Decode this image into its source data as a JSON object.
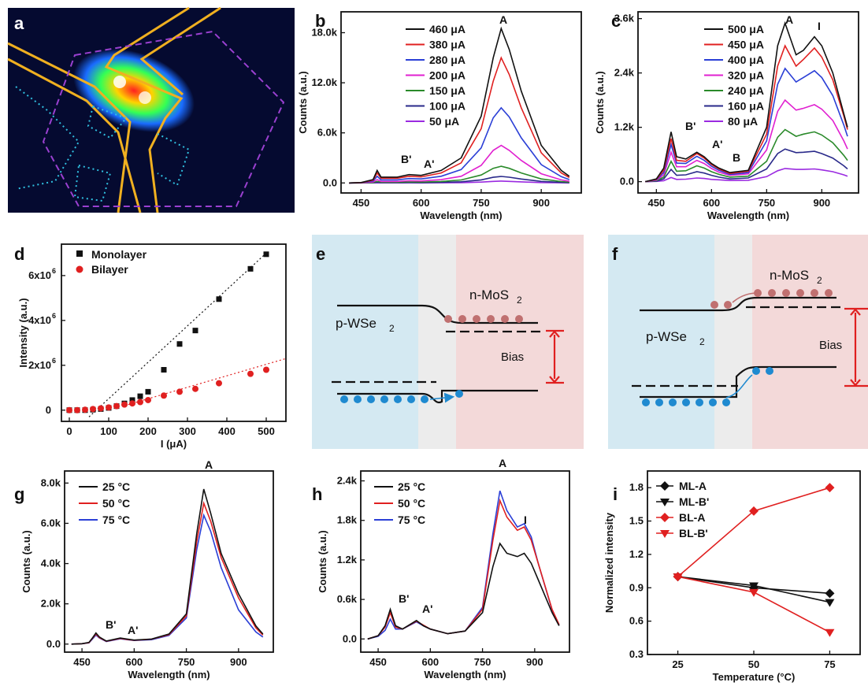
{
  "panel_labels": [
    "a",
    "b",
    "c",
    "d",
    "e",
    "f",
    "g",
    "h",
    "i"
  ],
  "colors": {
    "black": "#111111",
    "red": "#e02020",
    "blue": "#2b3fd6",
    "magenta": "#e020d0",
    "green": "#2a8a2a",
    "navy": "#2a2a8a",
    "violet": "#9a2ae0"
  },
  "panel_a": {
    "type": "image",
    "description": "EL map"
  },
  "panel_b": {
    "x_axis_title": "Wavelength (nm)",
    "y_axis_title": "Counts (a.u.)",
    "x_ticks": [
      "450",
      "600",
      "750",
      "900"
    ],
    "y_ticks": [
      "0.0",
      "6.0k",
      "12.0k",
      "18.0k"
    ],
    "peak_labels": [
      "A",
      "B'",
      "A'"
    ],
    "legend": [
      "460 μA",
      "380 μA",
      "280 μA",
      "200 μA",
      "150 μA",
      "100 μA",
      "50 μA"
    ]
  },
  "panel_c": {
    "x_axis_title": "Wavelength (nm)",
    "y_axis_title": "Counts (a.u.)",
    "x_ticks": [
      "450",
      "600",
      "750",
      "900"
    ],
    "y_ticks": [
      "0.0",
      "1.2k",
      "2.4k",
      "3.6k"
    ],
    "peak_labels": [
      "A",
      "I",
      "B'",
      "A'",
      "B"
    ],
    "legend": [
      "500 μA",
      "450 μA",
      "400 μA",
      "320 μA",
      "240 μA",
      "160 μA",
      "80 μA"
    ]
  },
  "panel_d": {
    "x_axis_title": "I (μA)",
    "y_axis_title": "Intensity (a.u.)",
    "x_ticks": [
      "0",
      "100",
      "200",
      "300",
      "400",
      "500"
    ],
    "y_ticks": [
      "0",
      "2x10",
      "4x10",
      "6x10"
    ],
    "y_exp": "6",
    "legend": [
      "Monolayer",
      "Bilayer"
    ]
  },
  "panel_e": {
    "left_label": "p-WSe",
    "right_label": "n-MoS",
    "sub": "2",
    "bias": "Bias"
  },
  "panel_f": {
    "left_label": "p-WSe",
    "right_label": "n-MoS",
    "sub": "2",
    "bias": "Bias"
  },
  "panel_g": {
    "x_axis_title": "Wavelength (nm)",
    "y_axis_title": "Counts (a.u.)",
    "x_ticks": [
      "450",
      "600",
      "750",
      "900"
    ],
    "y_ticks": [
      "0.0",
      "2.0k",
      "4.0k",
      "6.0k",
      "8.0k"
    ],
    "peak_labels": [
      "A",
      "B'",
      "A'"
    ],
    "legend": [
      "25 °C",
      "50 °C",
      "75 °C"
    ]
  },
  "panel_h": {
    "x_axis_title": "Wavelength (nm)",
    "y_axis_title": "Counts (a.u.)",
    "x_ticks": [
      "450",
      "600",
      "750",
      "900"
    ],
    "y_ticks": [
      "0.0",
      "0.6k",
      "1.2k",
      "1.8k",
      "2.4k"
    ],
    "peak_labels": [
      "A",
      "I",
      "B'",
      "A'"
    ],
    "legend": [
      "25 °C",
      "50 °C",
      "75 °C"
    ]
  },
  "panel_i": {
    "x_axis_title": "Temperature (°C)",
    "y_axis_title": "Normalized intensity",
    "x_ticks": [
      "25",
      "50",
      "75"
    ],
    "y_ticks": [
      "0.3",
      "0.6",
      "0.9",
      "1.2",
      "1.5",
      "1.8"
    ],
    "legend": [
      "ML-A",
      "ML-B'",
      "BL-A",
      "BL-B'"
    ]
  },
  "chart_data": [
    {
      "panel": "b",
      "type": "line",
      "x": [
        420,
        450,
        480,
        490,
        500,
        540,
        570,
        600,
        650,
        700,
        750,
        780,
        800,
        820,
        850,
        900,
        950,
        970
      ],
      "series": [
        {
          "name": "460 μA",
          "values": [
            0,
            50,
            400,
            1500,
            700,
            700,
            1000,
            900,
            1500,
            3000,
            8000,
            15000,
            18500,
            16000,
            11000,
            4500,
            1500,
            800
          ]
        },
        {
          "name": "380 μA",
          "values": [
            0,
            40,
            330,
            1200,
            560,
            560,
            800,
            720,
            1200,
            2400,
            6500,
            12200,
            15000,
            13000,
            9000,
            3600,
            1200,
            650
          ]
        },
        {
          "name": "280 μA",
          "values": [
            0,
            30,
            220,
            800,
            370,
            370,
            530,
            480,
            800,
            1600,
            4200,
            7800,
            9000,
            7900,
            5400,
            2200,
            750,
            400
          ]
        },
        {
          "name": "200 μA",
          "values": [
            0,
            20,
            110,
            400,
            180,
            180,
            260,
            230,
            390,
            800,
            2100,
            3900,
            4500,
            3900,
            2700,
            1100,
            370,
            200
          ]
        },
        {
          "name": "150 μA",
          "values": [
            0,
            10,
            50,
            180,
            80,
            80,
            120,
            100,
            180,
            360,
            950,
            1750,
            2000,
            1750,
            1200,
            480,
            170,
            90
          ]
        },
        {
          "name": "100 μA",
          "values": [
            0,
            5,
            20,
            70,
            30,
            30,
            45,
            40,
            70,
            140,
            370,
            680,
            780,
            690,
            470,
            190,
            65,
            35
          ]
        },
        {
          "name": "50 μA",
          "values": [
            0,
            2,
            5,
            20,
            10,
            10,
            15,
            12,
            20,
            40,
            100,
            190,
            220,
            190,
            130,
            50,
            20,
            10
          ]
        }
      ],
      "xlim": [
        400,
        1000
      ],
      "ylim": [
        -1200,
        20500
      ]
    },
    {
      "panel": "c",
      "type": "line",
      "x": [
        420,
        450,
        470,
        490,
        505,
        530,
        560,
        580,
        600,
        620,
        650,
        700,
        750,
        780,
        800,
        830,
        850,
        880,
        900,
        930,
        960,
        970
      ],
      "series": [
        {
          "name": "500 μA",
          "values": [
            0,
            60,
            300,
            1100,
            550,
            500,
            650,
            550,
            400,
            300,
            200,
            250,
            1200,
            3000,
            3500,
            2800,
            2900,
            3200,
            3000,
            2400,
            1500,
            1200
          ]
        },
        {
          "name": "450 μA",
          "values": [
            0,
            50,
            250,
            950,
            470,
            450,
            620,
            520,
            380,
            280,
            180,
            230,
            1050,
            2550,
            3000,
            2550,
            2700,
            2950,
            2750,
            2250,
            1450,
            1150
          ]
        },
        {
          "name": "400 μA",
          "values": [
            0,
            40,
            200,
            820,
            410,
            400,
            560,
            470,
            340,
            250,
            160,
            200,
            900,
            2150,
            2500,
            2200,
            2300,
            2450,
            2300,
            1900,
            1250,
            1000
          ]
        },
        {
          "name": "320 μA",
          "values": [
            0,
            30,
            150,
            650,
            330,
            330,
            470,
            400,
            290,
            210,
            140,
            170,
            700,
            1550,
            1800,
            1580,
            1620,
            1700,
            1600,
            1350,
            900,
            720
          ]
        },
        {
          "name": "240 μA",
          "values": [
            0,
            20,
            100,
            450,
            230,
            240,
            350,
            300,
            220,
            160,
            100,
            120,
            450,
            980,
            1150,
            1000,
            1050,
            1100,
            1030,
            860,
            580,
            470
          ]
        },
        {
          "name": "160 μA",
          "values": [
            0,
            10,
            60,
            270,
            140,
            150,
            220,
            190,
            140,
            100,
            60,
            80,
            280,
            620,
            720,
            640,
            650,
            670,
            620,
            520,
            350,
            280
          ]
        },
        {
          "name": "80 μA",
          "values": [
            0,
            5,
            20,
            90,
            50,
            55,
            80,
            70,
            50,
            40,
            25,
            30,
            110,
            240,
            290,
            270,
            270,
            280,
            260,
            220,
            150,
            120
          ]
        }
      ],
      "xlim": [
        400,
        1000
      ],
      "ylim": [
        -250,
        3750
      ]
    },
    {
      "panel": "d",
      "type": "scatter",
      "series": [
        {
          "name": "Monolayer",
          "x": [
            0,
            20,
            40,
            60,
            80,
            100,
            120,
            140,
            160,
            180,
            200,
            240,
            280,
            320,
            380,
            460,
            500
          ],
          "y": [
            0,
            0,
            0,
            0.02,
            0.05,
            0.1,
            0.18,
            0.3,
            0.45,
            0.62,
            0.82,
            1.8,
            2.95,
            3.55,
            4.95,
            6.3,
            6.95
          ]
        },
        {
          "name": "Bilayer",
          "x": [
            0,
            20,
            40,
            60,
            80,
            100,
            120,
            140,
            160,
            180,
            200,
            240,
            280,
            320,
            380,
            460,
            500
          ],
          "y": [
            0,
            0,
            0.02,
            0.05,
            0.08,
            0.12,
            0.18,
            0.25,
            0.3,
            0.36,
            0.45,
            0.65,
            0.82,
            0.95,
            1.2,
            1.62,
            1.8
          ]
        }
      ],
      "xlim": [
        -20,
        550
      ],
      "ylim": [
        -0.5,
        7.4
      ]
    },
    {
      "panel": "g",
      "type": "line",
      "x": [
        420,
        450,
        470,
        480,
        490,
        500,
        520,
        560,
        580,
        600,
        650,
        700,
        750,
        780,
        800,
        820,
        850,
        900,
        950,
        970
      ],
      "series": [
        {
          "name": "25 °C",
          "values": [
            0,
            20,
            80,
            300,
            550,
            350,
            150,
            300,
            250,
            200,
            250,
            500,
            1500,
            5500,
            7700,
            6500,
            4500,
            2500,
            900,
            500
          ]
        },
        {
          "name": "50 °C",
          "values": [
            0,
            20,
            70,
            280,
            500,
            320,
            140,
            280,
            230,
            190,
            240,
            470,
            1400,
            5100,
            7000,
            6100,
            4300,
            2300,
            800,
            450
          ]
        },
        {
          "name": "75 °C",
          "values": [
            0,
            20,
            60,
            250,
            450,
            300,
            130,
            260,
            220,
            180,
            220,
            430,
            1300,
            4700,
            6400,
            5600,
            3800,
            1700,
            600,
            350
          ]
        }
      ],
      "xlim": [
        400,
        1000
      ],
      "ylim": [
        -400,
        8600
      ]
    },
    {
      "panel": "h",
      "type": "line",
      "x": [
        420,
        450,
        470,
        485,
        500,
        520,
        560,
        580,
        600,
        650,
        700,
        750,
        780,
        800,
        820,
        850,
        870,
        890,
        910,
        950,
        970
      ],
      "series": [
        {
          "name": "25 °C",
          "values": [
            0,
            50,
            200,
            450,
            200,
            150,
            280,
            200,
            150,
            80,
            120,
            400,
            1100,
            1450,
            1300,
            1250,
            1300,
            1150,
            900,
            400,
            200
          ]
        },
        {
          "name": "50 °C",
          "values": [
            0,
            50,
            180,
            400,
            180,
            150,
            270,
            210,
            150,
            80,
            120,
            450,
            1500,
            2100,
            1850,
            1650,
            1700,
            1500,
            1150,
            450,
            220
          ]
        },
        {
          "name": "75 °C",
          "values": [
            0,
            40,
            130,
            300,
            150,
            150,
            260,
            200,
            150,
            80,
            120,
            480,
            1600,
            2250,
            1950,
            1700,
            1750,
            1550,
            1150,
            440,
            210
          ]
        }
      ],
      "xlim": [
        400,
        1000
      ],
      "ylim": [
        -200,
        2550
      ]
    },
    {
      "panel": "i",
      "type": "line",
      "x": [
        25,
        50,
        75
      ],
      "series": [
        {
          "name": "ML-A",
          "values": [
            1.0,
            0.9,
            0.85
          ]
        },
        {
          "name": "ML-B'",
          "values": [
            1.0,
            0.92,
            0.77
          ]
        },
        {
          "name": "BL-A",
          "values": [
            1.0,
            1.59,
            1.8
          ]
        },
        {
          "name": "BL-B'",
          "values": [
            1.0,
            0.86,
            0.5
          ]
        }
      ],
      "xlim": [
        15,
        85
      ],
      "ylim": [
        0.3,
        1.95
      ]
    }
  ]
}
